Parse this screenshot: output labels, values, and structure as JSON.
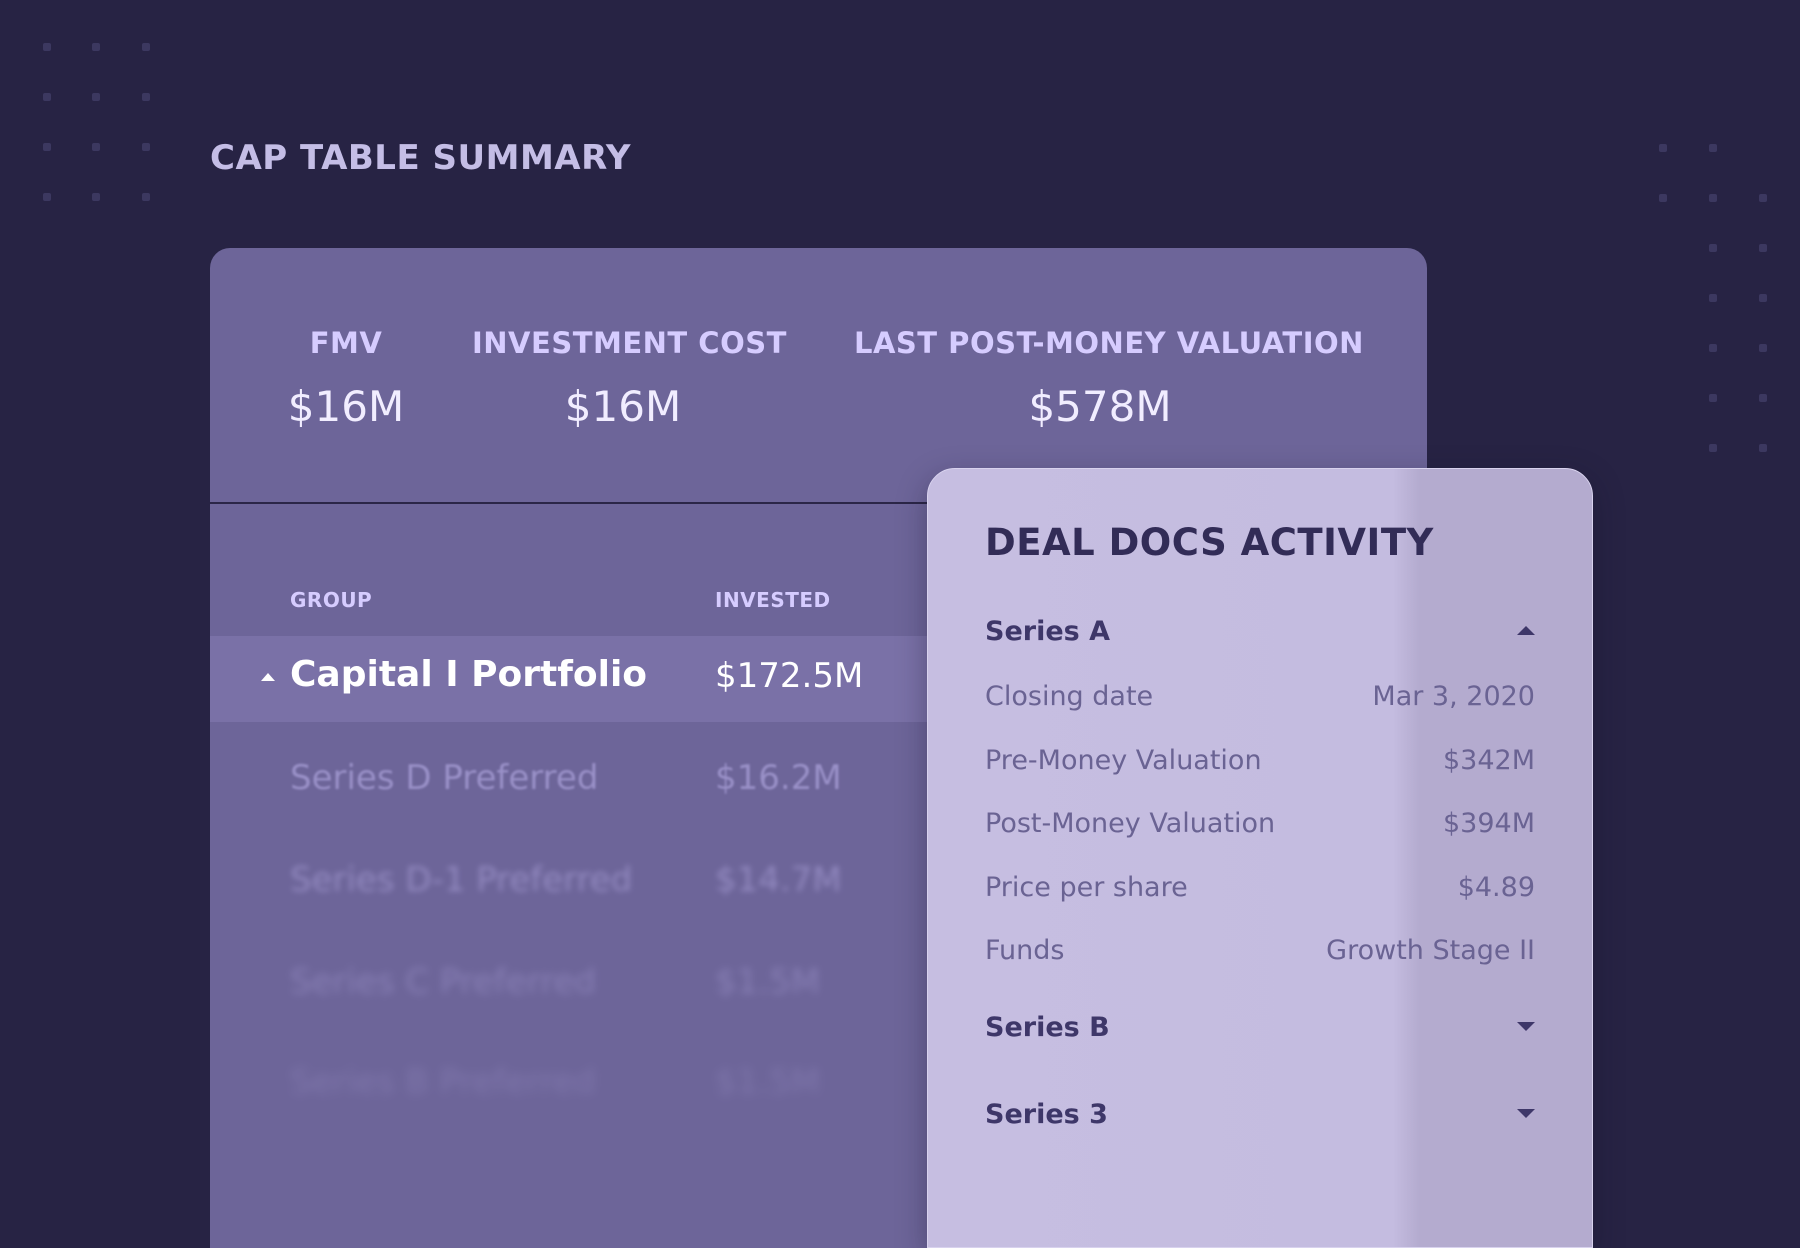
{
  "page_title": "CAP TABLE SUMMARY",
  "metrics": [
    {
      "label": "FMV",
      "value": "$16M"
    },
    {
      "label": "INVESTMENT COST",
      "value": "$16M"
    },
    {
      "label": "LAST POST-MONEY VALUATION",
      "value": "$578M"
    }
  ],
  "table": {
    "headers": {
      "group": "GROUP",
      "invested": "INVESTED"
    },
    "rows": [
      {
        "group": "Capital I Portfolio",
        "invested": "$172.5M"
      },
      {
        "group": "Series D Preferred",
        "invested": "$16.2M"
      },
      {
        "group": "Series D-1 Preferred",
        "invested": "$14.7M"
      },
      {
        "group": "Series C Preferred",
        "invested": "$1.5M"
      },
      {
        "group": "Series B Preferred",
        "invested": "$1.5M"
      }
    ]
  },
  "deal_docs": {
    "title": "DEAL DOCS ACTIVITY",
    "sections": [
      {
        "name": "Series A",
        "expanded": true
      },
      {
        "name": "Series B",
        "expanded": false
      },
      {
        "name": "Series 3",
        "expanded": false
      }
    ],
    "details": [
      {
        "label": "Closing date",
        "value": "Mar 3, 2020"
      },
      {
        "label": "Pre-Money Valuation",
        "value": "$342M"
      },
      {
        "label": "Post-Money Valuation",
        "value": "$394M"
      },
      {
        "label": "Price per share",
        "value": "$4.89"
      },
      {
        "label": "Funds",
        "value": "Growth Stage II"
      }
    ]
  }
}
